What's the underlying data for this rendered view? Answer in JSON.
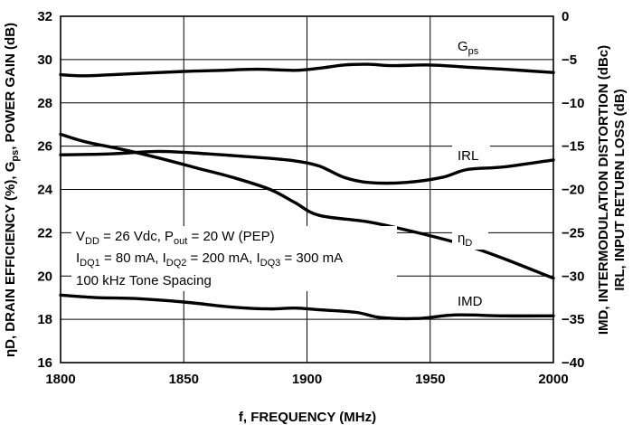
{
  "chart_data": {
    "type": "line",
    "xlabel": "f, FREQUENCY (MHz)",
    "ylabel_left": "ηD, DRAIN EFFICIENCY (%), Gps, POWER GAIN (dB)",
    "ylabel_right": "IMD, INTERMODULATION DISTORTION (dBc) IRL, INPUT RETURN LOSS (dB)",
    "xlim": [
      1800,
      2000
    ],
    "ylim_left": [
      16,
      32
    ],
    "ylim_right": [
      -40,
      0
    ],
    "x_ticks": [
      1800,
      1850,
      1900,
      1950,
      2000
    ],
    "y_ticks_left": [
      16,
      18,
      20,
      22,
      24,
      26,
      28,
      30,
      32
    ],
    "y_ticks_right": [
      -40,
      -35,
      -30,
      -25,
      -20,
      -15,
      -10,
      -5,
      0
    ],
    "grid": true,
    "series": [
      {
        "name": "Gps",
        "axis": "left",
        "x": [
          1800,
          1810,
          1830,
          1850,
          1865,
          1880,
          1895,
          1905,
          1915,
          1925,
          1935,
          1950,
          1965,
          1980,
          2000
        ],
        "y": [
          29.3,
          29.25,
          29.35,
          29.45,
          29.5,
          29.55,
          29.5,
          29.6,
          29.75,
          29.78,
          29.72,
          29.75,
          29.65,
          29.55,
          29.4
        ]
      },
      {
        "name": "IRL",
        "axis": "right",
        "x": [
          1800,
          1820,
          1840,
          1860,
          1880,
          1895,
          1905,
          1915,
          1925,
          1940,
          1955,
          1965,
          1980,
          2000
        ],
        "y": [
          -16.0,
          -15.9,
          -15.6,
          -15.9,
          -16.3,
          -16.7,
          -17.3,
          -18.6,
          -19.2,
          -19.2,
          -18.6,
          -17.7,
          -17.4,
          -16.6
        ]
      },
      {
        "name": "ηD",
        "axis": "left",
        "x": [
          1800,
          1810,
          1825,
          1840,
          1855,
          1870,
          1885,
          1895,
          1905,
          1925,
          1945,
          1965,
          1980,
          2000
        ],
        "y": [
          26.55,
          26.2,
          25.85,
          25.45,
          25.0,
          24.55,
          24.0,
          23.4,
          22.8,
          22.5,
          22.0,
          21.4,
          20.8,
          19.9
        ]
      },
      {
        "name": "IMD",
        "axis": "right",
        "x": [
          1800,
          1815,
          1830,
          1850,
          1870,
          1885,
          1895,
          1905,
          1920,
          1930,
          1945,
          1960,
          1980,
          2000
        ],
        "y": [
          -32.2,
          -32.5,
          -32.6,
          -33.0,
          -33.6,
          -33.8,
          -33.7,
          -33.9,
          -34.2,
          -34.8,
          -34.9,
          -34.5,
          -34.6,
          -34.6
        ]
      }
    ],
    "series_labels": {
      "Gps": "Gps",
      "IRL": "IRL",
      "etaD": "ηD",
      "IMD": "IMD"
    },
    "annotations": {
      "line1": "VDD = 26 Vdc, Pout = 20 W (PEP)",
      "line2": "IDQ1 = 80 mA, IDQ2 = 200 mA, IDQ3 = 300 mA",
      "line3": "100 kHz Tone Spacing"
    }
  }
}
